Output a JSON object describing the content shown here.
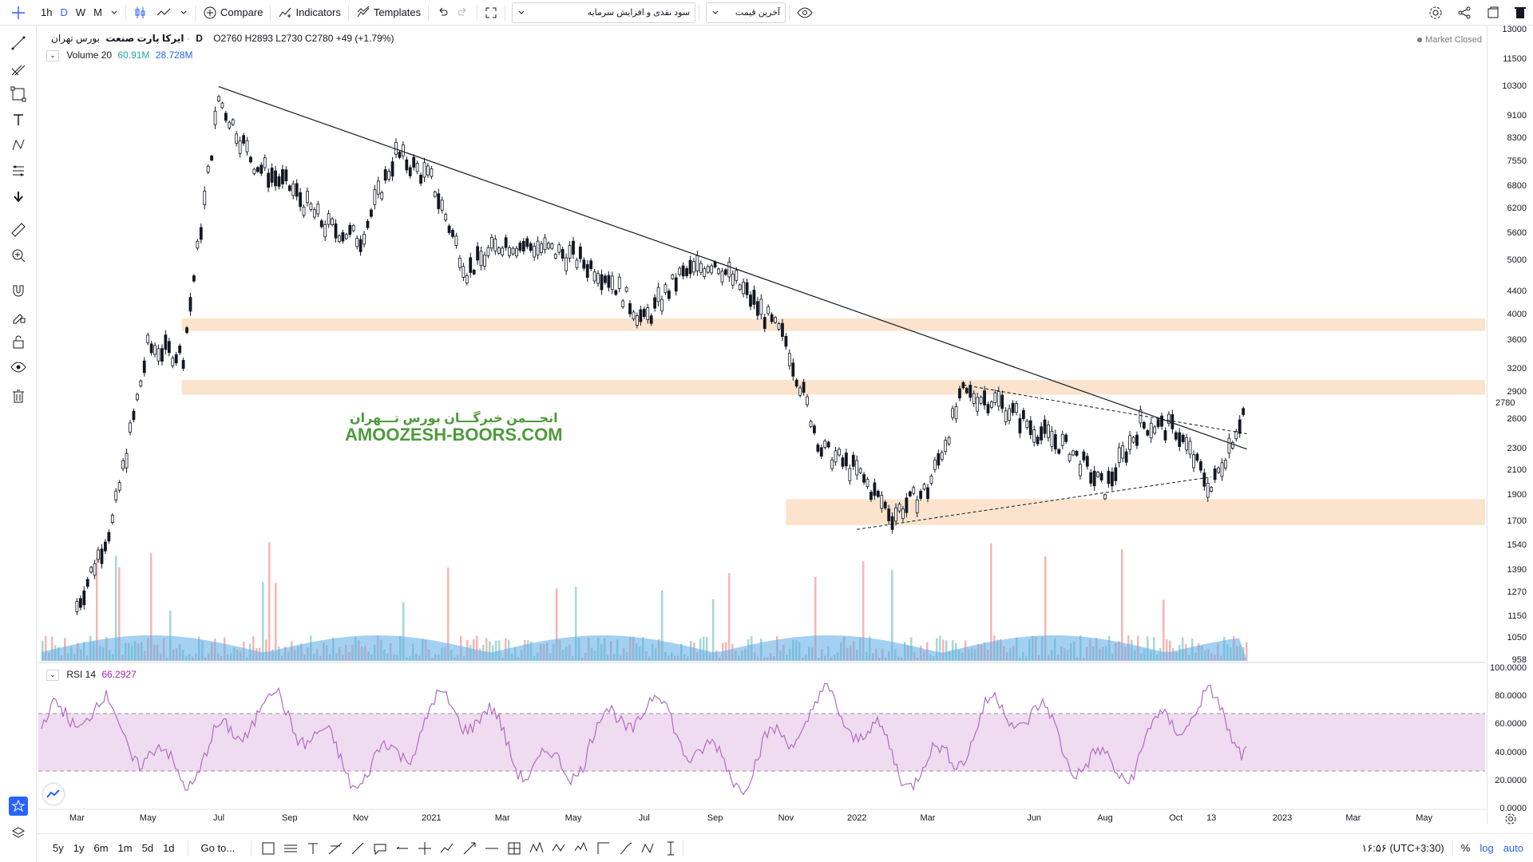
{
  "toolbar": {
    "intervals": [
      "1h",
      "D",
      "W",
      "M"
    ],
    "active_interval": "D",
    "compare_label": "Compare",
    "indicators_label": "Indicators",
    "templates_label": "Templates",
    "symbol_dropdown": "سود نقدی و افزایش سرمایه",
    "price_dropdown": "آخرین قیمت"
  },
  "legend": {
    "symbol_name": "ایرکا پارت صنعت",
    "exchange": "بورس تهران",
    "interval": "D",
    "open": "O2760",
    "high": "H2893",
    "low": "L2730",
    "close": "C2780",
    "change": "+49 (+1.79%)",
    "market_status": "Market Closed",
    "volume_label": "Volume 20",
    "volume_value1": "60.91M",
    "volume_value2": "28.728M",
    "rsi_label": "RSI 14",
    "rsi_value": "66.2927"
  },
  "watermark": {
    "line1": "انجـــمن خبرگـــان بورس تـــهران",
    "line2": "AMOOZESH-BOORS.COM"
  },
  "price_axis": {
    "labels": [
      "13000",
      "11500",
      "10300",
      "9100",
      "8300",
      "7550",
      "6800",
      "6200",
      "5600",
      "5000",
      "4400",
      "4000",
      "3600",
      "3200",
      "2900",
      "2780",
      "2600",
      "2300",
      "2100",
      "1900",
      "1700",
      "1540",
      "1390",
      "1270",
      "1150",
      "1050",
      "958"
    ],
    "last_price": "2780"
  },
  "rsi_axis": {
    "labels": [
      "100.0000",
      "80.0000",
      "60.0000",
      "40.0000",
      "20.0000",
      "0.0000"
    ]
  },
  "time_axis": {
    "labels": [
      "Mar",
      "May",
      "Jul",
      "Sep",
      "Nov",
      "2021",
      "Mar",
      "May",
      "Jul",
      "Sep",
      "Nov",
      "2022",
      "Mar",
      "Jun",
      "Aug",
      "Oct",
      "13",
      "2023",
      "Mar",
      "May"
    ]
  },
  "bottom_bar": {
    "ranges": [
      "5y",
      "1y",
      "6m",
      "1m",
      "5d",
      "1d"
    ],
    "goto_label": "Go to...",
    "time": "۱۶:۵۶ (UTC+3:30)",
    "percent_label": "%",
    "log_label": "log",
    "auto_label": "auto"
  },
  "colors": {
    "accent": "#2962ff",
    "zone": "#fbe3cd",
    "rsi_band": "#efdcf0",
    "rsi_line": "#b36bc4",
    "volume_up": "#8fcfc4",
    "volume_down": "#f4a3a3",
    "volume_ma": "#5aa9e6",
    "watermark": "#4f9a3c"
  },
  "chart_data": {
    "type": "candlestick",
    "title": "ایرکا پارت صنعت",
    "scale": "log",
    "ylim": [
      958,
      13000
    ],
    "x_labels": [
      "Mar",
      "May",
      "Jul",
      "Sep",
      "Nov",
      "2021",
      "Mar",
      "May",
      "Jul",
      "Sep",
      "Nov",
      "2022",
      "Mar",
      "Jun",
      "Aug",
      "Oct",
      "13",
      "2023"
    ],
    "close_trace": [
      [
        "2020-03",
        1200
      ],
      [
        "2020-04",
        1700
      ],
      [
        "2020-05",
        3500
      ],
      [
        "2020-06",
        3400
      ],
      [
        "2020-07",
        9800
      ],
      [
        "2020-08",
        7500
      ],
      [
        "2020-09",
        6800
      ],
      [
        "2020-10",
        5800
      ],
      [
        "2020-11",
        5500
      ],
      [
        "2020-12",
        7800
      ],
      [
        "2021-01",
        7000
      ],
      [
        "2021-02",
        4800
      ],
      [
        "2021-03",
        5400
      ],
      [
        "2021-04",
        5300
      ],
      [
        "2021-05",
        5100
      ],
      [
        "2021-06",
        4700
      ],
      [
        "2021-07",
        3900
      ],
      [
        "2021-08",
        4700
      ],
      [
        "2021-09",
        5000
      ],
      [
        "2021-10",
        4300
      ],
      [
        "2021-11",
        3600
      ],
      [
        "2021-12",
        2300
      ],
      [
        "2022-01",
        2100
      ],
      [
        "2022-02",
        1750
      ],
      [
        "2022-03",
        1950
      ],
      [
        "2022-04",
        2900
      ],
      [
        "2022-05",
        2800
      ],
      [
        "2022-06",
        2500
      ],
      [
        "2022-07",
        2300
      ],
      [
        "2022-08",
        1950
      ],
      [
        "2022-09",
        2550
      ],
      [
        "2022-10",
        2500
      ],
      [
        "2022-11",
        1950
      ],
      [
        "2022-12",
        2780
      ]
    ],
    "horizontal_zones": [
      [
        2880,
        3060
      ],
      [
        3750,
        3950
      ],
      [
        1680,
        1870
      ]
    ],
    "trendlines": [
      {
        "style": "solid",
        "from": [
          "2020-07",
          10300
        ],
        "to": [
          "2022-12",
          2300
        ]
      },
      {
        "style": "dashed",
        "from": [
          "2022-04",
          3000
        ],
        "to": [
          "2022-12",
          2450
        ]
      },
      {
        "style": "dashed",
        "from": [
          "2022-01",
          1650
        ],
        "to": [
          "2022-11",
          2050
        ]
      }
    ],
    "rsi": {
      "period": 14,
      "last": 66.2927,
      "bands": [
        30,
        70
      ],
      "ylim": [
        0,
        100
      ]
    }
  }
}
